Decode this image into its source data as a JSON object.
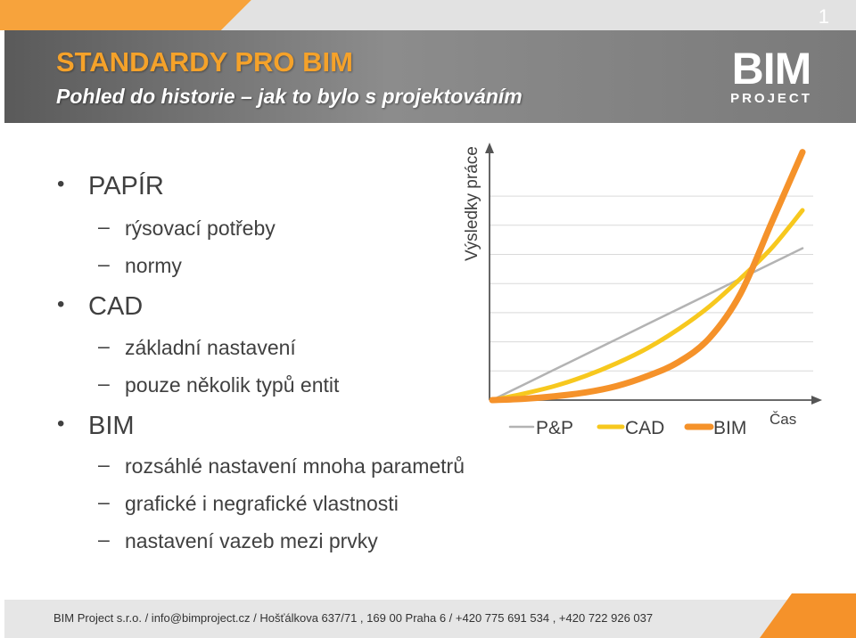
{
  "header": {
    "title": "STANDARDY PRO BIM",
    "subtitle": "Pohled do historie – jak to bylo s projektováním",
    "logo_main": "BIM",
    "logo_sub": "PROJECT"
  },
  "bullets": [
    {
      "text": "PAPÍR",
      "level": 1
    },
    {
      "text": "rýsovací potřeby",
      "level": 2
    },
    {
      "text": "normy",
      "level": 2
    },
    {
      "text": "CAD",
      "level": 1
    },
    {
      "text": "základní nastavení",
      "level": 2
    },
    {
      "text": "pouze několik typů entit",
      "level": 2
    },
    {
      "text": "BIM",
      "level": 1
    },
    {
      "text": "rozsáhlé nastavení mnoha parametrů",
      "level": 2
    },
    {
      "text": "grafické i negrafické vlastnosti",
      "level": 2
    },
    {
      "text": "nastavení vazeb mezi prvky",
      "level": 2
    }
  ],
  "chart_data": {
    "type": "line",
    "ylabel": "Výsledky práce",
    "xlabel": "Čas",
    "x": [
      0,
      0.1,
      0.2,
      0.3,
      0.4,
      0.5,
      0.6,
      0.7,
      0.8,
      0.9,
      1.0
    ],
    "ylim": [
      0,
      1
    ],
    "xlim": [
      0,
      1
    ],
    "grid": true,
    "legend_position": "bottom",
    "series": [
      {
        "name": "P&P",
        "color": "#b3b3b3",
        "values": [
          0,
          0.06,
          0.12,
          0.18,
          0.24,
          0.3,
          0.36,
          0.42,
          0.48,
          0.54,
          0.6
        ]
      },
      {
        "name": "CAD",
        "color": "#f7c81e",
        "values": [
          0,
          0.025,
          0.055,
          0.095,
          0.145,
          0.205,
          0.28,
          0.37,
          0.48,
          0.6,
          0.75
        ]
      },
      {
        "name": "BIM",
        "color": "#f5922a",
        "values": [
          0,
          0.005,
          0.015,
          0.03,
          0.055,
          0.095,
          0.15,
          0.245,
          0.42,
          0.7,
          0.98
        ]
      }
    ]
  },
  "footer": {
    "text": "BIM Project s.r.o.  /  info@bimproject.cz  /  Hošťálkova 637/71 , 169 00 Praha 6  /  +420 775 691 534 , +420 722 926 037",
    "page": "1"
  },
  "colors": {
    "accent": "#f5922a",
    "header_bg": "#7a7a7a",
    "title": "#f5a22a"
  }
}
